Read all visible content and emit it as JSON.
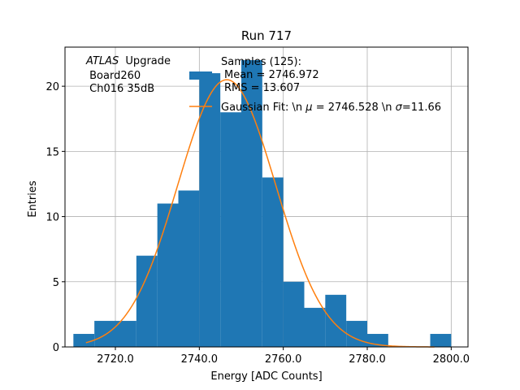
{
  "chart_data": {
    "type": "bar",
    "title": "Run 717",
    "xlabel": "Energy [ADC Counts]",
    "ylabel": "Entries",
    "xlim": [
      2708,
      2804
    ],
    "ylim": [
      0,
      23
    ],
    "grid": true,
    "xticks": [
      2720,
      2740,
      2760,
      2780,
      2800
    ],
    "xtick_labels": [
      "2720.0",
      "2740.0",
      "2760.0",
      "2780.0",
      "2800.0"
    ],
    "yticks": [
      0,
      5,
      10,
      15,
      20
    ],
    "yticks_labels": [
      "0",
      "5",
      "10",
      "15",
      "20"
    ],
    "histogram": {
      "color": "#1f77b4",
      "bin_edges": [
        2710,
        2715,
        2720,
        2725,
        2730,
        2735,
        2740,
        2745,
        2750,
        2755,
        2760,
        2765,
        2770,
        2775,
        2780,
        2785,
        2790,
        2795,
        2800
      ],
      "counts": [
        1,
        2,
        2,
        7,
        11,
        12,
        21,
        18,
        22,
        13,
        5,
        3,
        4,
        2,
        1,
        0,
        0,
        1
      ]
    },
    "fit": {
      "color": "#ff7f0e",
      "mu": 2746.528,
      "sigma": 11.66,
      "amplitude": 20.5,
      "x_range": [
        2713,
        2796
      ]
    },
    "legend": {
      "placement": "top-right",
      "entries": [
        {
          "kind": "patch",
          "lines": [
            "Samples (125):",
            " Mean = 2746.972",
            " RMS = 13.607"
          ]
        },
        {
          "kind": "line",
          "lines": [
            "Gaussian Fit: \\n $\\mu$ = 2746.528 \\n $\\sigma$=11.66"
          ]
        }
      ]
    },
    "annotation": {
      "atlas": "ATLAS",
      "upgrade": "Upgrade",
      "line2": "Board260",
      "line3": "Ch016 35dB"
    }
  },
  "legend_display": {
    "samples_line1": "Samples (125):",
    "samples_line2": "Mean = 2746.972",
    "samples_line3": "RMS = 13.607",
    "fit_prefix": "Gaussian Fit: \\n ",
    "fit_mid": " = 2746.528 \\n ",
    "fit_suffix": "=11.66",
    "mu_symbol": "μ",
    "sigma_symbol": "σ"
  }
}
